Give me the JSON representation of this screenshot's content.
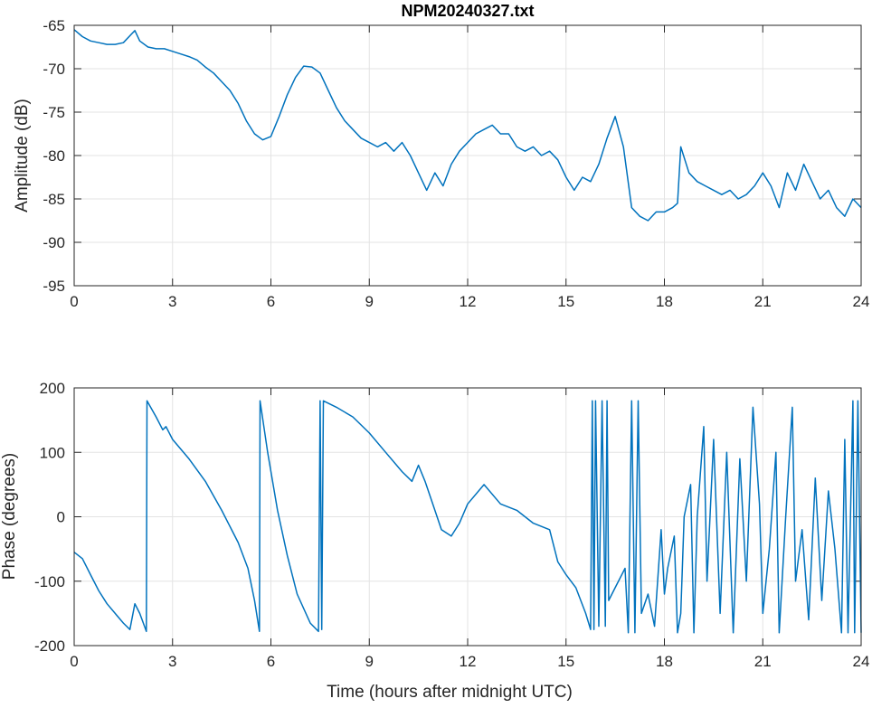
{
  "title": "NPM20240327.txt",
  "line_color": "#0072bd",
  "chart_data": [
    {
      "type": "line",
      "name": "amplitude",
      "title": "NPM20240327.txt",
      "xlabel": "",
      "ylabel": "Amplitude (dB)",
      "xlim": [
        0,
        24
      ],
      "ylim": [
        -95,
        -65
      ],
      "xticks": [
        0,
        3,
        6,
        9,
        12,
        15,
        18,
        21,
        24
      ],
      "yticks": [
        -65,
        -70,
        -75,
        -80,
        -85,
        -90,
        -95
      ],
      "grid": true,
      "x": [
        0,
        0.25,
        0.5,
        0.75,
        1,
        1.25,
        1.5,
        1.75,
        1.85,
        2,
        2.25,
        2.5,
        2.75,
        3,
        3.25,
        3.5,
        3.75,
        4,
        4.25,
        4.5,
        4.75,
        5,
        5.25,
        5.5,
        5.75,
        6,
        6.25,
        6.5,
        6.75,
        7,
        7.25,
        7.5,
        7.75,
        8,
        8.25,
        8.5,
        8.75,
        9,
        9.25,
        9.5,
        9.75,
        10,
        10.25,
        10.5,
        10.75,
        11,
        11.25,
        11.5,
        11.75,
        12,
        12.25,
        12.5,
        12.75,
        13,
        13.25,
        13.5,
        13.75,
        14,
        14.25,
        14.5,
        14.75,
        15,
        15.25,
        15.5,
        15.75,
        16,
        16.25,
        16.5,
        16.75,
        17,
        17.25,
        17.5,
        17.75,
        18,
        18.25,
        18.4,
        18.5,
        18.75,
        19,
        19.25,
        19.5,
        19.75,
        20,
        20.25,
        20.5,
        20.75,
        21,
        21.25,
        21.5,
        21.75,
        22,
        22.25,
        22.5,
        22.75,
        23,
        23.25,
        23.5,
        23.75,
        24
      ],
      "y": [
        -65.5,
        -66.3,
        -66.8,
        -67,
        -67.2,
        -67.2,
        -67,
        -66,
        -65.6,
        -66.8,
        -67.5,
        -67.7,
        -67.7,
        -68,
        -68.3,
        -68.6,
        -69,
        -69.8,
        -70.5,
        -71.5,
        -72.5,
        -74,
        -76,
        -77.5,
        -78.2,
        -77.8,
        -75.5,
        -73,
        -71,
        -69.7,
        -69.8,
        -70.5,
        -72.5,
        -74.5,
        -76,
        -77,
        -78,
        -78.5,
        -79,
        -78.5,
        -79.5,
        -78.5,
        -80,
        -82,
        -84,
        -82,
        -83.5,
        -81,
        -79.5,
        -78.5,
        -77.5,
        -77,
        -76.5,
        -77.5,
        -77.5,
        -79,
        -79.5,
        -79,
        -80,
        -79.5,
        -80.5,
        -82.5,
        -84,
        -82.5,
        -83,
        -81,
        -78,
        -75.5,
        -79,
        -86,
        -87,
        -87.5,
        -86.5,
        -86.5,
        -86,
        -85.5,
        -79,
        -82,
        -83,
        -83.5,
        -84,
        -84.5,
        -84,
        -85,
        -84.5,
        -83.5,
        -82,
        -83.5,
        -86,
        -82,
        -84,
        -81,
        -83,
        -85,
        -84,
        -86,
        -87,
        -85,
        -86
      ]
    },
    {
      "type": "line",
      "name": "phase",
      "xlabel": "Time (hours after midnight UTC)",
      "ylabel": "Phase (degrees)",
      "xlim": [
        0,
        24
      ],
      "ylim": [
        -200,
        200
      ],
      "xticks": [
        0,
        3,
        6,
        9,
        12,
        15,
        18,
        21,
        24
      ],
      "yticks": [
        200,
        100,
        0,
        -100,
        -200
      ],
      "grid": true,
      "x": [
        0,
        0.25,
        0.5,
        0.75,
        1,
        1.25,
        1.5,
        1.7,
        1.85,
        2.0,
        2.2,
        2.22,
        2.5,
        2.7,
        2.8,
        3,
        3.5,
        4,
        4.5,
        5,
        5.3,
        5.5,
        5.65,
        5.67,
        5.9,
        6.2,
        6.5,
        6.8,
        7.2,
        7.45,
        7.5,
        7.55,
        7.6,
        8,
        8.5,
        9,
        9.5,
        10,
        10.3,
        10.5,
        10.7,
        11,
        11.2,
        11.5,
        11.75,
        12,
        12.5,
        13,
        13.5,
        14,
        14.5,
        14.75,
        15,
        15.3,
        15.6,
        15.75,
        15.8,
        15.85,
        15.9,
        16,
        16.1,
        16.2,
        16.25,
        16.3,
        16.5,
        16.8,
        16.9,
        17,
        17.1,
        17.2,
        17.3,
        17.5,
        17.7,
        17.9,
        18,
        18.1,
        18.3,
        18.4,
        18.5,
        18.6,
        18.8,
        18.9,
        19,
        19.2,
        19.3,
        19.5,
        19.7,
        19.9,
        20.1,
        20.3,
        20.5,
        20.7,
        20.9,
        21,
        21.2,
        21.4,
        21.5,
        21.7,
        21.9,
        22,
        22.2,
        22.4,
        22.6,
        22.8,
        23,
        23.2,
        23.4,
        23.5,
        23.6,
        23.75,
        23.8,
        23.9,
        24
      ],
      "y": [
        -55,
        -65,
        -90,
        -115,
        -135,
        -150,
        -165,
        -175,
        -135,
        -150,
        -178,
        180,
        155,
        135,
        140,
        120,
        90,
        55,
        10,
        -40,
        -80,
        -130,
        -178,
        180,
        100,
        10,
        -60,
        -120,
        -165,
        -178,
        180,
        -175,
        180,
        170,
        155,
        130,
        100,
        70,
        55,
        80,
        55,
        10,
        -20,
        -30,
        -10,
        20,
        50,
        20,
        10,
        -10,
        -20,
        -70,
        -90,
        -110,
        -150,
        -175,
        180,
        -175,
        180,
        -170,
        180,
        -170,
        180,
        -130,
        -110,
        -80,
        -180,
        180,
        -180,
        180,
        -150,
        -120,
        -170,
        -20,
        -120,
        -80,
        -30,
        -180,
        -150,
        0,
        50,
        -180,
        0,
        140,
        -100,
        120,
        -150,
        100,
        -180,
        90,
        -100,
        170,
        20,
        -150,
        -50,
        100,
        -180,
        0,
        170,
        -100,
        -20,
        -160,
        60,
        -130,
        40,
        -50,
        -180,
        120,
        -180,
        180,
        -180,
        180,
        -180
      ]
    }
  ]
}
